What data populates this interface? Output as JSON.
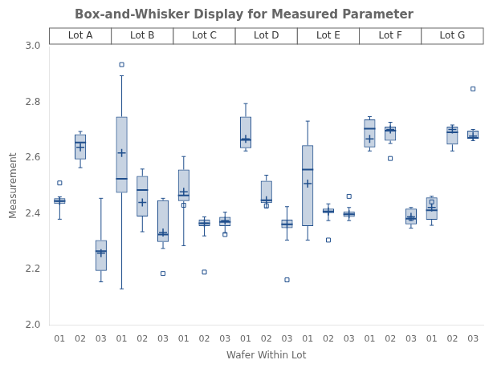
{
  "chart_data": {
    "type": "box",
    "title": "Box-and-Whisker Display for Measured Parameter",
    "xlabel": "Wafer Within Lot",
    "ylabel": "Measurement",
    "categories": [
      "01",
      "02",
      "03",
      "01",
      "02",
      "03",
      "01",
      "02",
      "03",
      "01",
      "02",
      "03",
      "01",
      "02",
      "03",
      "01",
      "02",
      "03",
      "01",
      "02",
      "03"
    ],
    "groups": [
      "Lot A",
      "Lot B",
      "Lot C",
      "Lot D",
      "Lot E",
      "Lot F",
      "Lot G"
    ],
    "boxes": [
      {
        "whislo": 2.38,
        "q1": 2.435,
        "med": 2.445,
        "q3": 2.455,
        "whishi": 2.46,
        "mean": 2.445,
        "fliers": [
          2.51
        ]
      },
      {
        "whislo": 2.565,
        "q1": 2.595,
        "med": 2.655,
        "q3": 2.685,
        "whishi": 2.695,
        "mean": 2.638,
        "fliers": []
      },
      {
        "whislo": 2.155,
        "q1": 2.195,
        "med": 2.265,
        "q3": 2.305,
        "whishi": 2.455,
        "mean": 2.258,
        "fliers": []
      },
      {
        "whislo": 2.13,
        "q1": 2.475,
        "med": 2.525,
        "q3": 2.748,
        "whishi": 2.895,
        "mean": 2.618,
        "fliers": [
          2.935
        ]
      },
      {
        "whislo": 2.335,
        "q1": 2.39,
        "med": 2.485,
        "q3": 2.535,
        "whishi": 2.56,
        "mean": 2.44,
        "fliers": []
      },
      {
        "whislo": 2.275,
        "q1": 2.298,
        "med": 2.325,
        "q3": 2.448,
        "whishi": 2.455,
        "mean": 2.332,
        "fliers": [
          2.185
        ]
      },
      {
        "whislo": 2.285,
        "q1": 2.445,
        "med": 2.465,
        "q3": 2.558,
        "whishi": 2.605,
        "mean": 2.478,
        "fliers": [
          2.43
        ]
      },
      {
        "whislo": 2.32,
        "q1": 2.355,
        "med": 2.365,
        "q3": 2.378,
        "whishi": 2.388,
        "mean": 2.365,
        "fliers": [
          2.19
        ]
      },
      {
        "whislo": 2.33,
        "q1": 2.355,
        "med": 2.37,
        "q3": 2.388,
        "whishi": 2.405,
        "mean": 2.375,
        "fliers": [
          2.325
        ]
      },
      {
        "whislo": 2.625,
        "q1": 2.635,
        "med": 2.665,
        "q3": 2.748,
        "whishi": 2.795,
        "mean": 2.668,
        "fliers": []
      },
      {
        "whislo": 2.42,
        "q1": 2.438,
        "med": 2.448,
        "q3": 2.518,
        "whishi": 2.538,
        "mean": 2.448,
        "fliers": [
          2.428
        ]
      },
      {
        "whislo": 2.305,
        "q1": 2.348,
        "med": 2.362,
        "q3": 2.378,
        "whishi": 2.425,
        "mean": 2.362,
        "fliers": [
          2.162
        ]
      },
      {
        "whislo": 2.305,
        "q1": 2.355,
        "med": 2.558,
        "q3": 2.645,
        "whishi": 2.732,
        "mean": 2.508,
        "fliers": []
      },
      {
        "whislo": 2.375,
        "q1": 2.402,
        "med": 2.408,
        "q3": 2.418,
        "whishi": 2.435,
        "mean": 2.408,
        "fliers": [
          2.305
        ]
      },
      {
        "whislo": 2.375,
        "q1": 2.388,
        "med": 2.398,
        "q3": 2.408,
        "whishi": 2.422,
        "mean": 2.398,
        "fliers": [
          2.462
        ]
      },
      {
        "whislo": 2.625,
        "q1": 2.638,
        "med": 2.705,
        "q3": 2.738,
        "whishi": 2.748,
        "mean": 2.668,
        "fliers": []
      },
      {
        "whislo": 2.652,
        "q1": 2.662,
        "med": 2.698,
        "q3": 2.712,
        "whishi": 2.728,
        "mean": 2.702,
        "fliers": [
          2.598
        ]
      },
      {
        "whislo": 2.348,
        "q1": 2.362,
        "med": 2.382,
        "q3": 2.418,
        "whishi": 2.422,
        "mean": 2.388,
        "fliers": [
          2.382
        ]
      },
      {
        "whislo": 2.358,
        "q1": 2.378,
        "med": 2.412,
        "q3": 2.458,
        "whishi": 2.462,
        "mean": 2.422,
        "fliers": [
          2.442
        ]
      },
      {
        "whislo": 2.625,
        "q1": 2.648,
        "med": 2.692,
        "q3": 2.712,
        "whishi": 2.718,
        "mean": 2.702,
        "fliers": []
      },
      {
        "whislo": 2.662,
        "q1": 2.668,
        "med": 2.672,
        "q3": 2.698,
        "whishi": 2.702,
        "mean": 2.678,
        "fliers": [
          2.848
        ]
      }
    ],
    "ylim": [
      2.0,
      3.0
    ],
    "yticks": [
      {
        "value": 2.0,
        "label": "2.0"
      },
      2.2,
      2.4,
      2.6,
      2.8,
      {
        "value": 3.0,
        "label": "3.0"
      }
    ],
    "grid": false,
    "color": "#1f4e8c"
  }
}
